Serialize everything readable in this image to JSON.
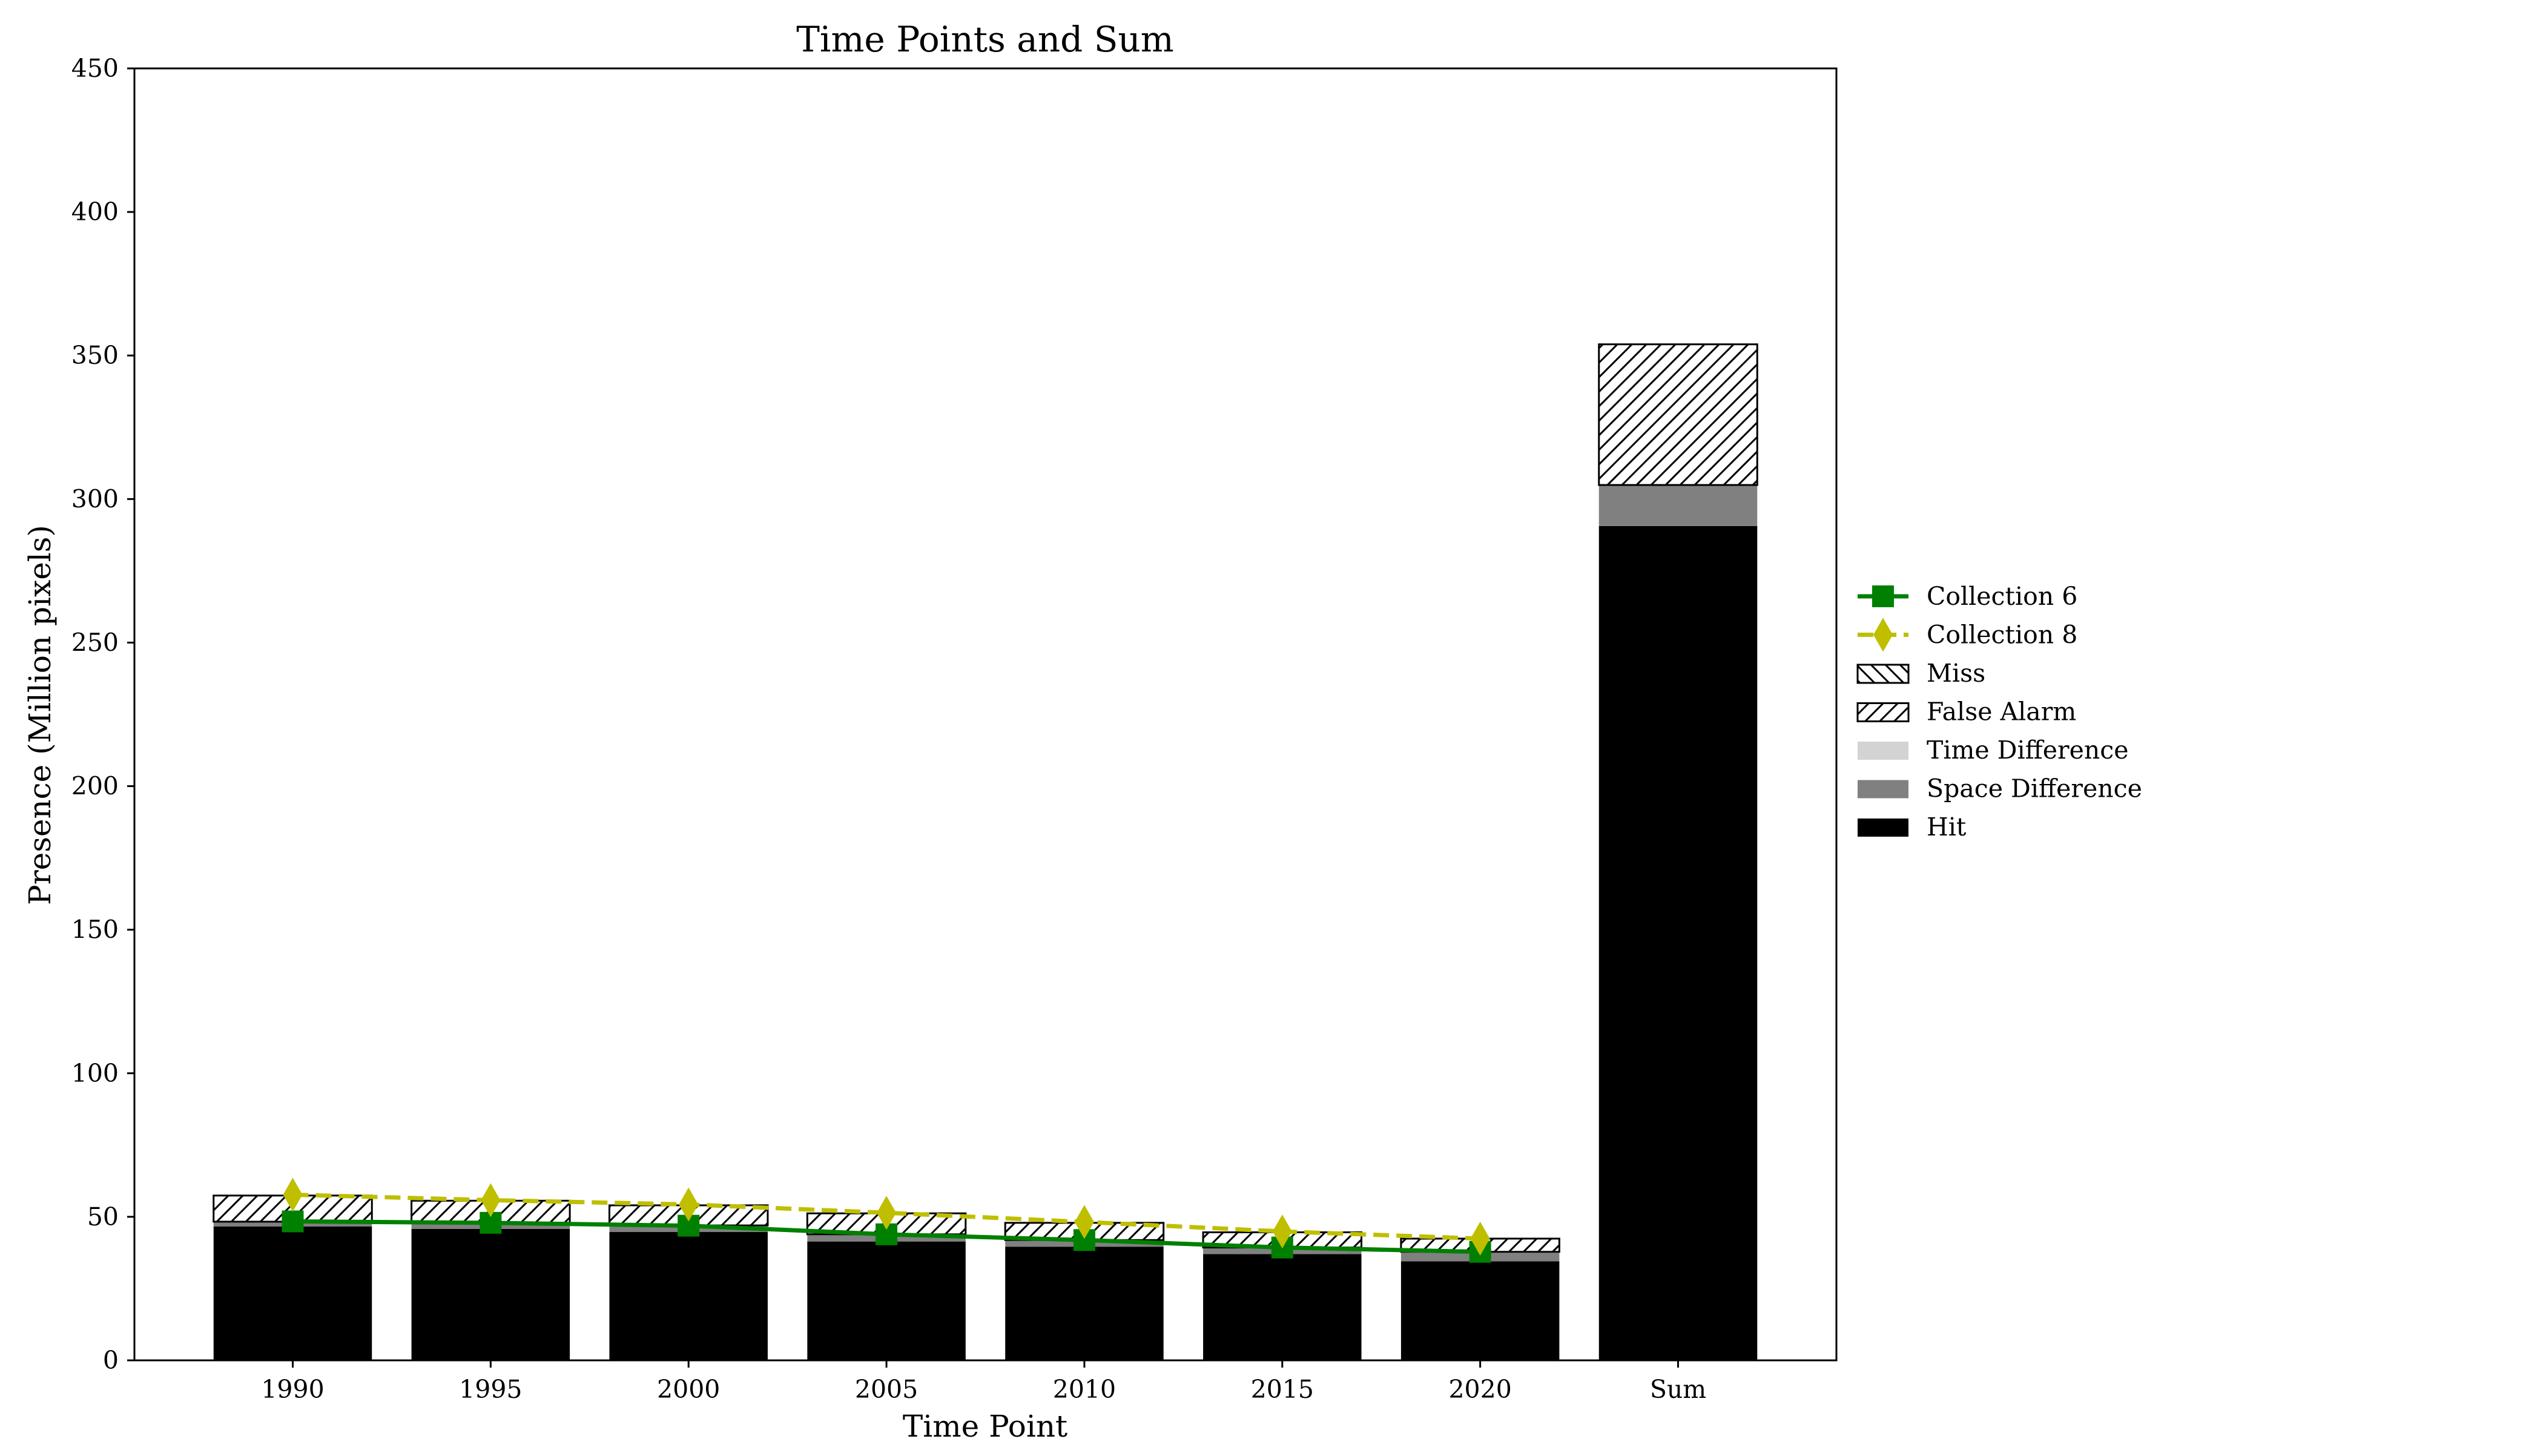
{
  "chart_data": {
    "type": "bar",
    "title": "Time Points and Sum",
    "xlabel": "Time Point",
    "ylabel": "Presence (Million pixels)",
    "categories": [
      "1990",
      "1995",
      "2000",
      "2005",
      "2010",
      "2015",
      "2020",
      "Sum"
    ],
    "yticks": [
      "0",
      "50",
      "100",
      "150",
      "200",
      "250",
      "300",
      "350",
      "400",
      "450"
    ],
    "ylim": [
      0,
      450
    ],
    "stacked_series": [
      {
        "name": "Hit",
        "values": [
          46.6,
          45.8,
          44.7,
          41.4,
          39.6,
          37.0,
          34.5,
          290.6
        ],
        "color": "#000000",
        "pattern": "solid"
      },
      {
        "name": "Space Difference",
        "values": [
          1.4,
          1.8,
          2.0,
          2.2,
          2.0,
          2.0,
          3.0,
          14.3
        ],
        "color": "#808080",
        "pattern": "solid"
      },
      {
        "name": "Time Difference",
        "values": [
          0.3,
          0.3,
          0.3,
          0.3,
          0.3,
          0.3,
          0.3,
          0.0
        ],
        "color": "#d3d3d3",
        "pattern": "solid"
      },
      {
        "name": "False Alarm",
        "values": [
          9.1,
          7.7,
          7.0,
          7.3,
          6.0,
          5.3,
          4.6,
          49.0
        ],
        "color": "#ffffff",
        "pattern": "hatch-forward"
      },
      {
        "name": "Miss",
        "values": [
          0,
          0,
          0,
          0,
          0,
          0,
          0,
          0
        ],
        "color": "#ffffff",
        "pattern": "hatch-back"
      }
    ],
    "line_series": [
      {
        "name": "Collection 6",
        "values": [
          48.4,
          47.9,
          46.9,
          43.9,
          41.9,
          39.3,
          37.8
        ],
        "color": "#008000",
        "marker": "square",
        "style": "solid"
      },
      {
        "name": "Collection 8",
        "values": [
          57.7,
          55.8,
          54.3,
          51.4,
          48.2,
          44.9,
          42.4
        ],
        "color": "#bfbf00",
        "marker": "thin-diamond",
        "style": "dashed"
      }
    ],
    "legend": {
      "position": "right",
      "entries": [
        "Collection 6",
        "Collection 8",
        "Miss",
        "False Alarm",
        "Time Difference",
        "Space Difference",
        "Hit"
      ]
    },
    "grid": false
  }
}
